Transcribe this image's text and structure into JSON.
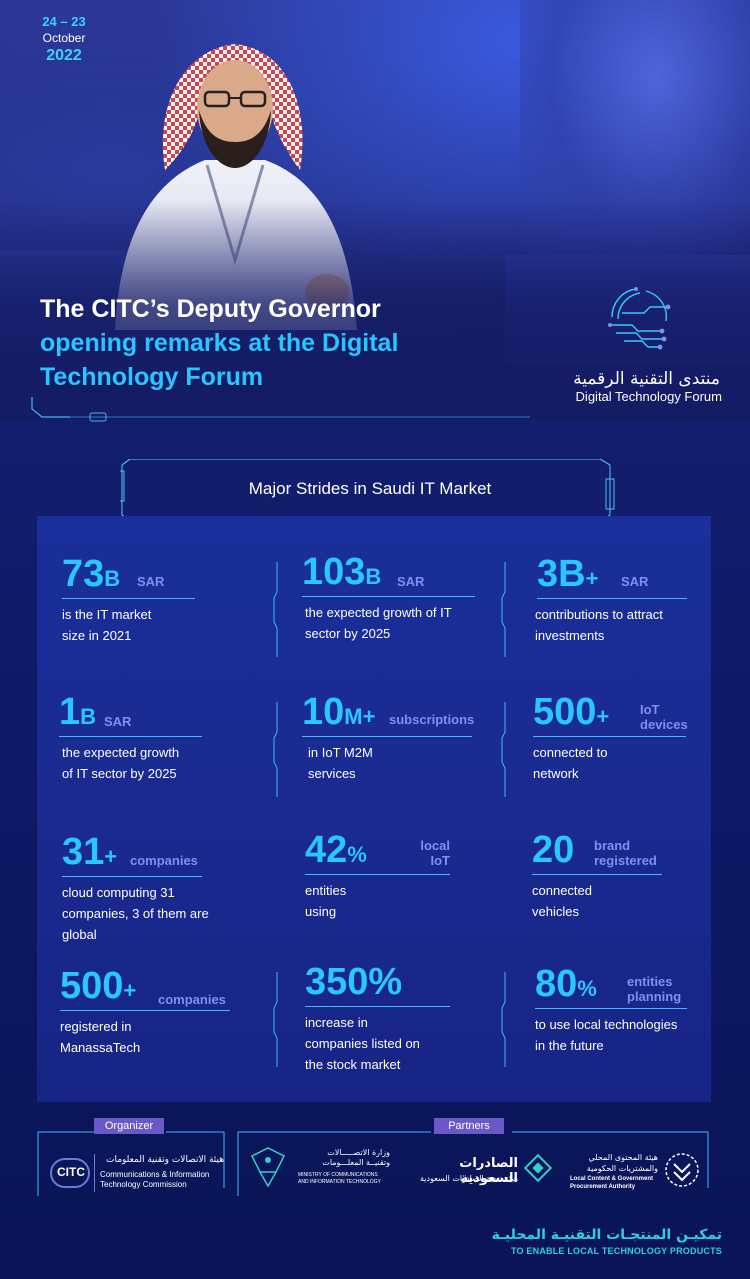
{
  "date": {
    "days": "24 – 23",
    "month": "October",
    "year": "2022"
  },
  "headline": {
    "line1": "The CITC’s Deputy Governor",
    "line2": "opening remarks at the Digital",
    "line3": "Technology Forum"
  },
  "forum": {
    "name_ar": "منتدى التقنية الرقمية",
    "name_en": "Digital Technology Forum"
  },
  "section_title": "Major Strides in Saudi IT Market",
  "stats": [
    {
      "value": "73",
      "suffix": "B",
      "unit": "SAR",
      "desc": [
        "is the IT market",
        "size in 2021"
      ]
    },
    {
      "value": "103",
      "suffix": "B",
      "unit": "SAR",
      "desc": [
        "the expected growth of IT",
        "sector by 2025"
      ]
    },
    {
      "value": "3B",
      "suffix": "+",
      "unit": "SAR",
      "desc": [
        "contributions to attract",
        "investments"
      ]
    },
    {
      "value": "1",
      "suffix": "B",
      "unit": "SAR",
      "desc": [
        "the expected growth",
        "of IT sector by 2025"
      ]
    },
    {
      "value": "10",
      "suffix": "M+",
      "unit": "subscriptions",
      "desc": [
        "in IoT M2M",
        "services"
      ]
    },
    {
      "value": "500",
      "suffix": "+",
      "unit": [
        "IoT",
        "devices"
      ],
      "desc": [
        "connected to",
        "network"
      ]
    },
    {
      "value": "31",
      "suffix": "+",
      "unit": "companies",
      "desc": [
        "cloud computing 31",
        "companies, 3 of them are",
        "global"
      ]
    },
    {
      "value": "42",
      "suffix": "%",
      "unit": [
        "local",
        "IoT"
      ],
      "desc": [
        "entities",
        "using"
      ]
    },
    {
      "value": "20",
      "suffix": "",
      "unit": [
        "brand",
        "registered"
      ],
      "desc": [
        "connected",
        "vehicles"
      ]
    },
    {
      "value": "500",
      "suffix": "+",
      "unit": "companies",
      "desc": [
        "registered in",
        "ManassaTech"
      ]
    },
    {
      "value": "350%",
      "suffix": "",
      "unit": "",
      "desc": [
        "increase in",
        "companies listed on",
        "the stock market"
      ]
    },
    {
      "value": "80",
      "suffix": "%",
      "unit": [
        "entities",
        "planning"
      ],
      "desc": [
        "to use local technologies",
        "in the future"
      ]
    }
  ],
  "footer": {
    "organizer_label": "Organizer",
    "partners_label": "Partners",
    "organizer": {
      "abbr": "CITC",
      "name_ar": "هيئة الاتصالات وتقنية المعلومات",
      "name_en1": "Communications & Information",
      "name_en2": "Technology Commission"
    },
    "partners": [
      {
        "name_ar1": "وزارة الاتصـــــالات",
        "name_ar2": "وتقنيــة المعلـــومات",
        "name_en1": "MINISTRY OF COMMUNICATIONS",
        "name_en2": "AND INFORMATION TECHNOLOGY"
      },
      {
        "name_ar1": "الصادرات السعودية",
        "name_ar2": "هيئة تنمية الصادرات السعودية"
      },
      {
        "name_ar1": "هيئة المحتوى المحلي",
        "name_ar2": "والمشتريات الحكومية",
        "name_en1": "Local Content & Government",
        "name_en2": "Procurement Authority"
      }
    ],
    "tagline_ar": "تمكيـن المنتجـات التقنيـة المحليـة",
    "tagline_en": "TO ENABLE LOCAL TECHNOLOGY PRODUCTS"
  },
  "colors": {
    "accent": "#29c6ff",
    "unit": "#7f8ff0",
    "panel": "#1a2a90",
    "label": "#6b58c8"
  }
}
